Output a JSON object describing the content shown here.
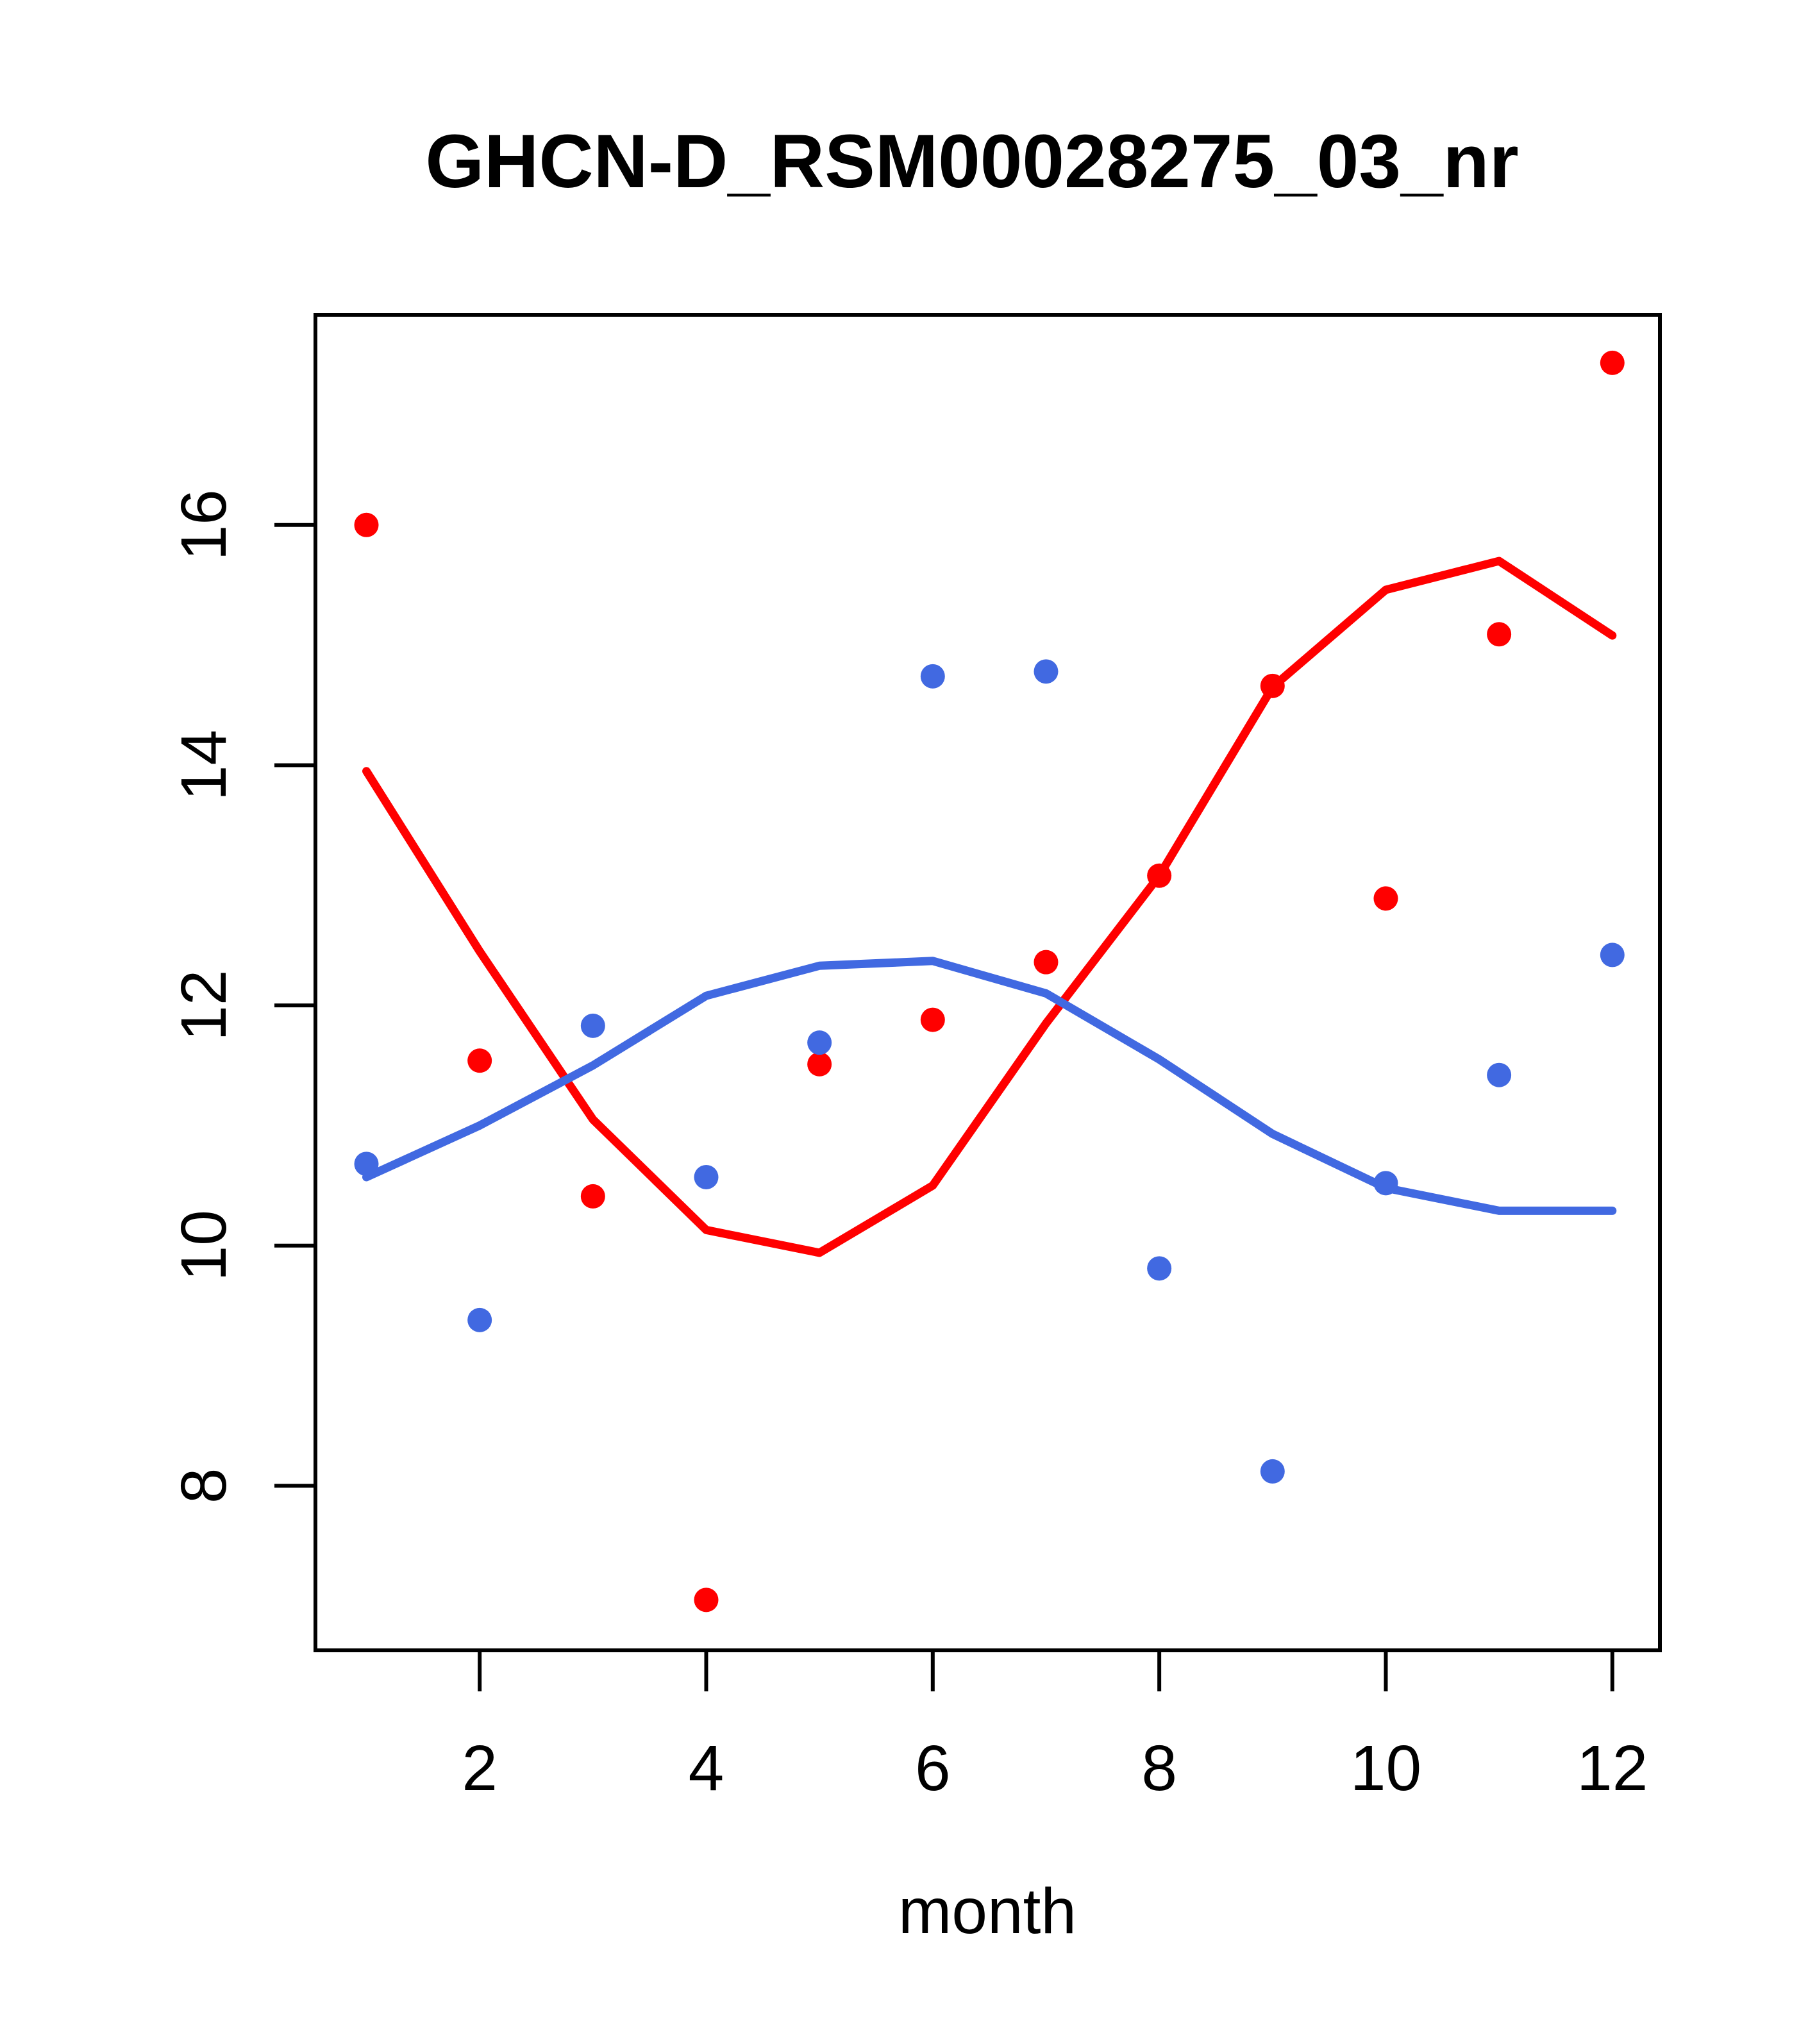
{
  "figure": {
    "background_color": "#ffffff",
    "axis_color": "#000000",
    "text_color": "#000000"
  },
  "chart_data": {
    "type": "scatter",
    "title": "GHCN-D_RSM00028275_03_nr",
    "xlabel": "month",
    "ylabel": "",
    "grid": false,
    "legend_position": "none",
    "xlim": [
      0.55,
      12.42
    ],
    "ylim": [
      6.63,
      17.75
    ],
    "x_ticks": [
      2,
      4,
      6,
      8,
      10,
      12
    ],
    "y_ticks": [
      8,
      10,
      12,
      14,
      16
    ],
    "x": [
      1,
      2,
      3,
      4,
      5,
      6,
      7,
      8,
      9,
      10,
      11,
      12
    ],
    "series": [
      {
        "name": "red-points",
        "kind": "scatter",
        "color": "#ff0000",
        "values": [
          16.0,
          11.54,
          10.41,
          7.05,
          11.51,
          11.88,
          12.36,
          13.08,
          14.66,
          12.89,
          15.09,
          17.35
        ]
      },
      {
        "name": "blue-points",
        "kind": "scatter",
        "color": "#4169e1",
        "values": [
          10.68,
          9.38,
          11.83,
          10.57,
          11.69,
          14.74,
          14.78,
          9.81,
          8.12,
          10.52,
          11.42,
          12.42
        ]
      },
      {
        "name": "red-smooth-line",
        "kind": "line",
        "color": "#ff0000",
        "values": [
          13.95,
          12.45,
          11.05,
          10.13,
          9.94,
          10.5,
          11.85,
          13.08,
          14.65,
          15.46,
          15.7,
          15.08
        ]
      },
      {
        "name": "blue-smooth-line",
        "kind": "line",
        "color": "#4169e1",
        "values": [
          10.57,
          11.0,
          11.5,
          12.08,
          12.33,
          12.37,
          12.1,
          11.55,
          10.93,
          10.48,
          10.29,
          10.29
        ]
      }
    ]
  }
}
